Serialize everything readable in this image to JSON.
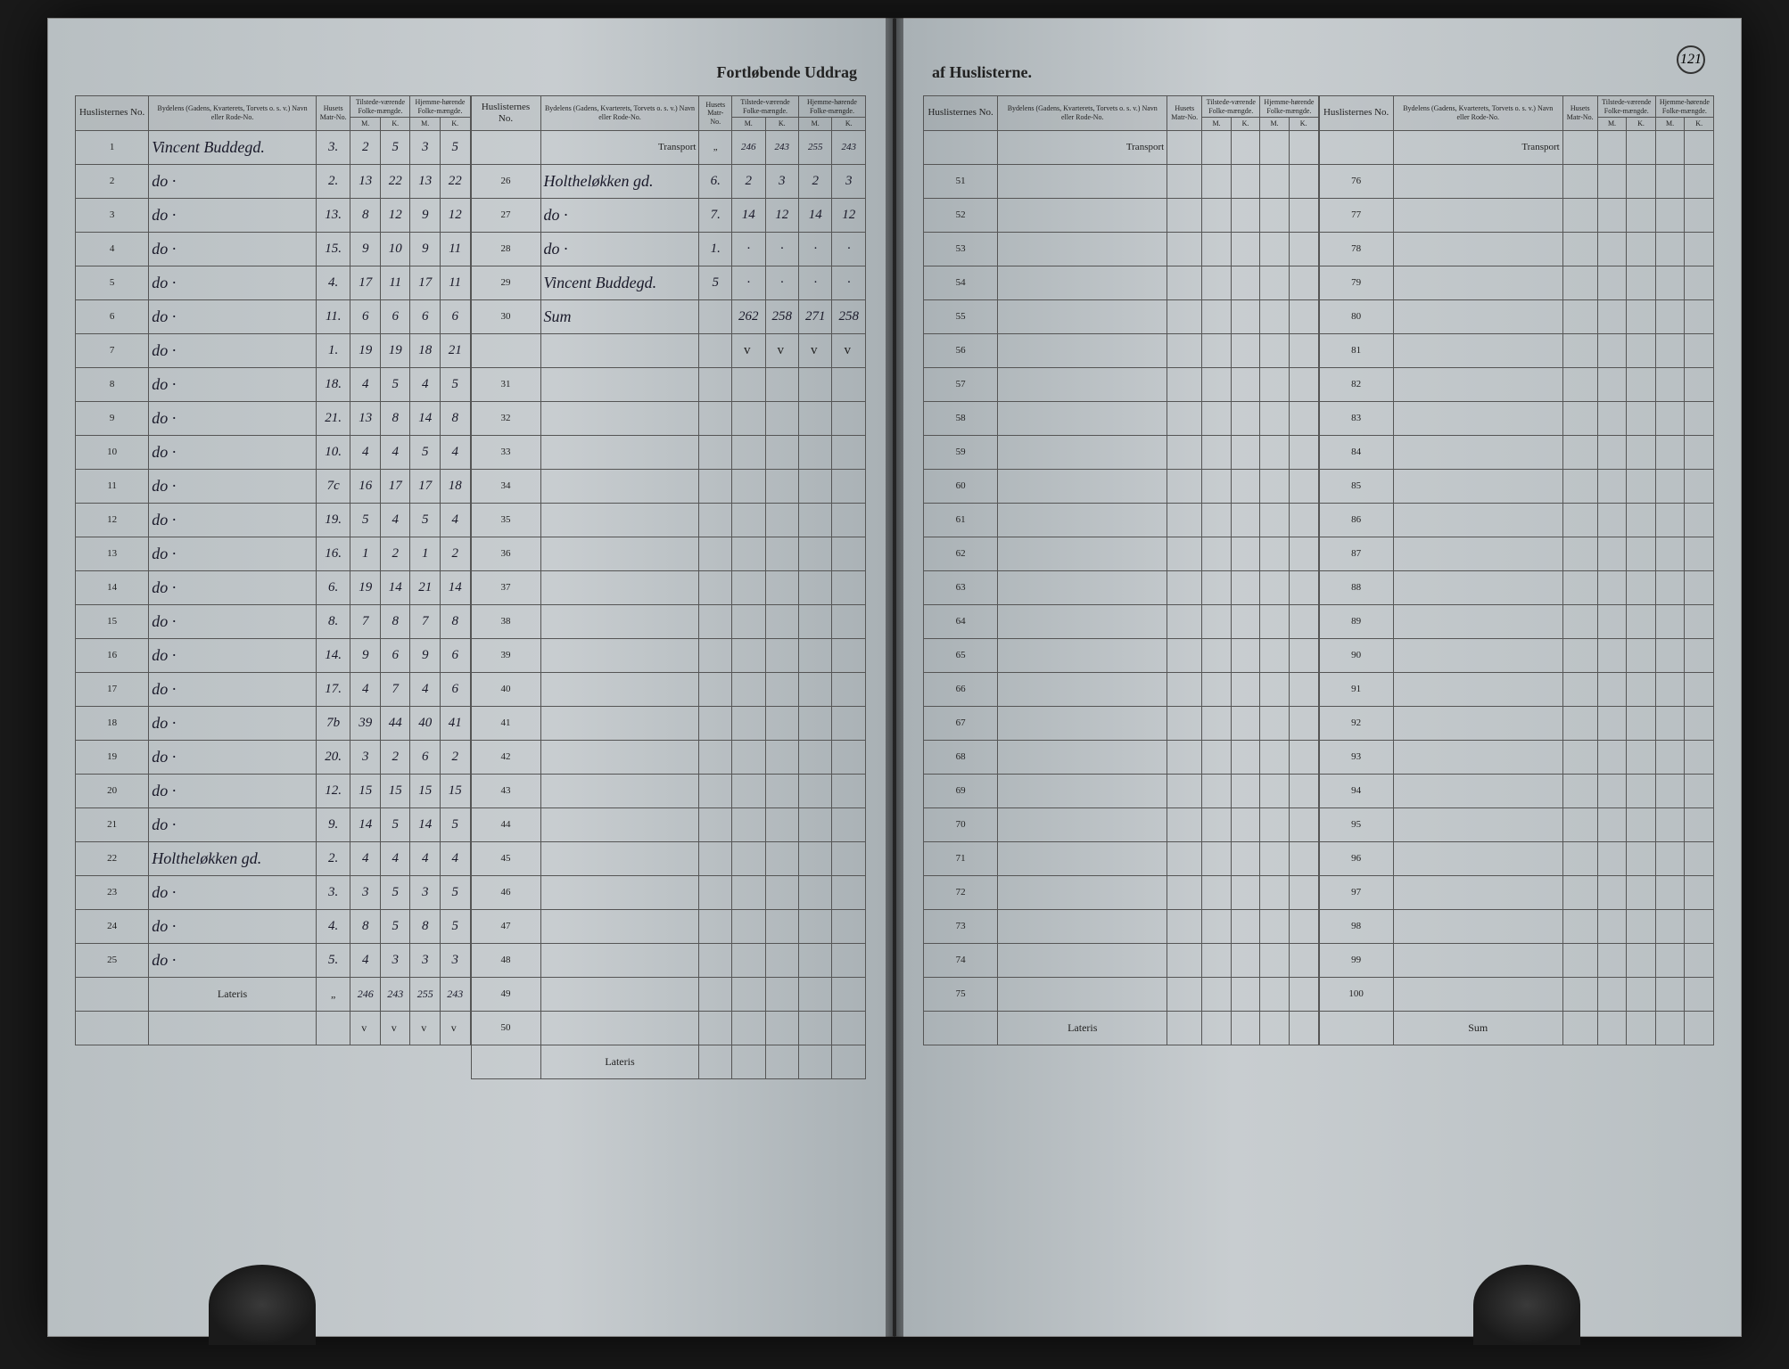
{
  "title_left": "Fortløbende Uddrag",
  "title_right": "af Huslisterne.",
  "page_number": "121",
  "headers": {
    "no": "Huslisternes No.",
    "name": "Bydelens (Gadens, Kvarterets, Torvets o. s. v.) Navn eller Rode-No.",
    "matr": "Husets Matr-No.",
    "tilstede": "Tilstede-værende Folke-mængde.",
    "hjemme": "Hjemme-hørende Folke-mængde.",
    "m": "M.",
    "k": "K."
  },
  "transport_label": "Transport",
  "lateris_label": "Lateris",
  "sum_label": "Sum",
  "left_section_a": [
    {
      "no": "1",
      "name": "Vincent Buddegd.",
      "matr": "3.",
      "m1": "2",
      "k1": "5",
      "m2": "3",
      "k2": "5"
    },
    {
      "no": "2",
      "name": "do    ·",
      "matr": "2.",
      "m1": "13",
      "k1": "22",
      "m2": "13",
      "k2": "22"
    },
    {
      "no": "3",
      "name": "do    ·",
      "matr": "13.",
      "m1": "8",
      "k1": "12",
      "m2": "9",
      "k2": "12"
    },
    {
      "no": "4",
      "name": "do    ·",
      "matr": "15.",
      "m1": "9",
      "k1": "10",
      "m2": "9",
      "k2": "11"
    },
    {
      "no": "5",
      "name": "do    ·",
      "matr": "4.",
      "m1": "17",
      "k1": "11",
      "m2": "17",
      "k2": "11"
    },
    {
      "no": "6",
      "name": "do    ·",
      "matr": "11.",
      "m1": "6",
      "k1": "6",
      "m2": "6",
      "k2": "6"
    },
    {
      "no": "7",
      "name": "do    ·",
      "matr": "1.",
      "m1": "19",
      "k1": "19",
      "m2": "18",
      "k2": "21"
    },
    {
      "no": "8",
      "name": "do    ·",
      "matr": "18.",
      "m1": "4",
      "k1": "5",
      "m2": "4",
      "k2": "5"
    },
    {
      "no": "9",
      "name": "do    ·",
      "matr": "21.",
      "m1": "13",
      "k1": "8",
      "m2": "14",
      "k2": "8"
    },
    {
      "no": "10",
      "name": "do    ·",
      "matr": "10.",
      "m1": "4",
      "k1": "4",
      "m2": "5",
      "k2": "4"
    },
    {
      "no": "11",
      "name": "do    ·",
      "matr": "7c",
      "m1": "16",
      "k1": "17",
      "m2": "17",
      "k2": "18"
    },
    {
      "no": "12",
      "name": "do    ·",
      "matr": "19.",
      "m1": "5",
      "k1": "4",
      "m2": "5",
      "k2": "4"
    },
    {
      "no": "13",
      "name": "do    ·",
      "matr": "16.",
      "m1": "1",
      "k1": "2",
      "m2": "1",
      "k2": "2"
    },
    {
      "no": "14",
      "name": "do    ·",
      "matr": "6.",
      "m1": "19",
      "k1": "14",
      "m2": "21",
      "k2": "14"
    },
    {
      "no": "15",
      "name": "do    ·",
      "matr": "8.",
      "m1": "7",
      "k1": "8",
      "m2": "7",
      "k2": "8"
    },
    {
      "no": "16",
      "name": "do    ·",
      "matr": "14.",
      "m1": "9",
      "k1": "6",
      "m2": "9",
      "k2": "6"
    },
    {
      "no": "17",
      "name": "do    ·",
      "matr": "17.",
      "m1": "4",
      "k1": "7",
      "m2": "4",
      "k2": "6"
    },
    {
      "no": "18",
      "name": "do    ·",
      "matr": "7b",
      "m1": "39",
      "k1": "44",
      "m2": "40",
      "k2": "41"
    },
    {
      "no": "19",
      "name": "do    ·",
      "matr": "20.",
      "m1": "3",
      "k1": "2",
      "m2": "6",
      "k2": "2"
    },
    {
      "no": "20",
      "name": "do    ·",
      "matr": "12.",
      "m1": "15",
      "k1": "15",
      "m2": "15",
      "k2": "15"
    },
    {
      "no": "21",
      "name": "do    ·",
      "matr": "9.",
      "m1": "14",
      "k1": "5",
      "m2": "14",
      "k2": "5"
    },
    {
      "no": "22",
      "name": "Holtheløkken gd.",
      "matr": "2.",
      "m1": "4",
      "k1": "4",
      "m2": "4",
      "k2": "4"
    },
    {
      "no": "23",
      "name": "do    ·",
      "matr": "3.",
      "m1": "3",
      "k1": "5",
      "m2": "3",
      "k2": "5"
    },
    {
      "no": "24",
      "name": "do    ·",
      "matr": "4.",
      "m1": "8",
      "k1": "5",
      "m2": "8",
      "k2": "5"
    },
    {
      "no": "25",
      "name": "do    ·",
      "matr": "5.",
      "m1": "4",
      "k1": "3",
      "m2": "3",
      "k2": "3"
    }
  ],
  "left_lateris_a": {
    "m1": "246",
    "k1": "243",
    "m2": "255",
    "k2": "243"
  },
  "left_section_b_transport": {
    "m1": "246",
    "k1": "243",
    "m2": "255",
    "k2": "243"
  },
  "left_section_b": [
    {
      "no": "26",
      "name": "Holtheløkken gd.",
      "matr": "6.",
      "m1": "2",
      "k1": "3",
      "m2": "2",
      "k2": "3"
    },
    {
      "no": "27",
      "name": "do    ·",
      "matr": "7.",
      "m1": "14",
      "k1": "12",
      "m2": "14",
      "k2": "12"
    },
    {
      "no": "28",
      "name": "do    ·",
      "matr": "1.",
      "m1": "·",
      "k1": "·",
      "m2": "·",
      "k2": "·"
    },
    {
      "no": "29",
      "name": "Vincent Buddegd.",
      "matr": "5",
      "m1": "·",
      "k1": "·",
      "m2": "·",
      "k2": "·"
    },
    {
      "no": "30",
      "name": "Sum",
      "matr": "",
      "m1": "262",
      "k1": "258",
      "m2": "271",
      "k2": "258"
    }
  ],
  "left_b_empty_start": 31,
  "left_b_empty_end": 50,
  "right_c_start": 51,
  "right_c_end": 75,
  "right_d_start": 76,
  "right_d_end": 100,
  "colors": {
    "paper": "#c8cdd0",
    "ink": "#1a1a2a",
    "border": "#555555",
    "background": "#1a1a1a"
  }
}
